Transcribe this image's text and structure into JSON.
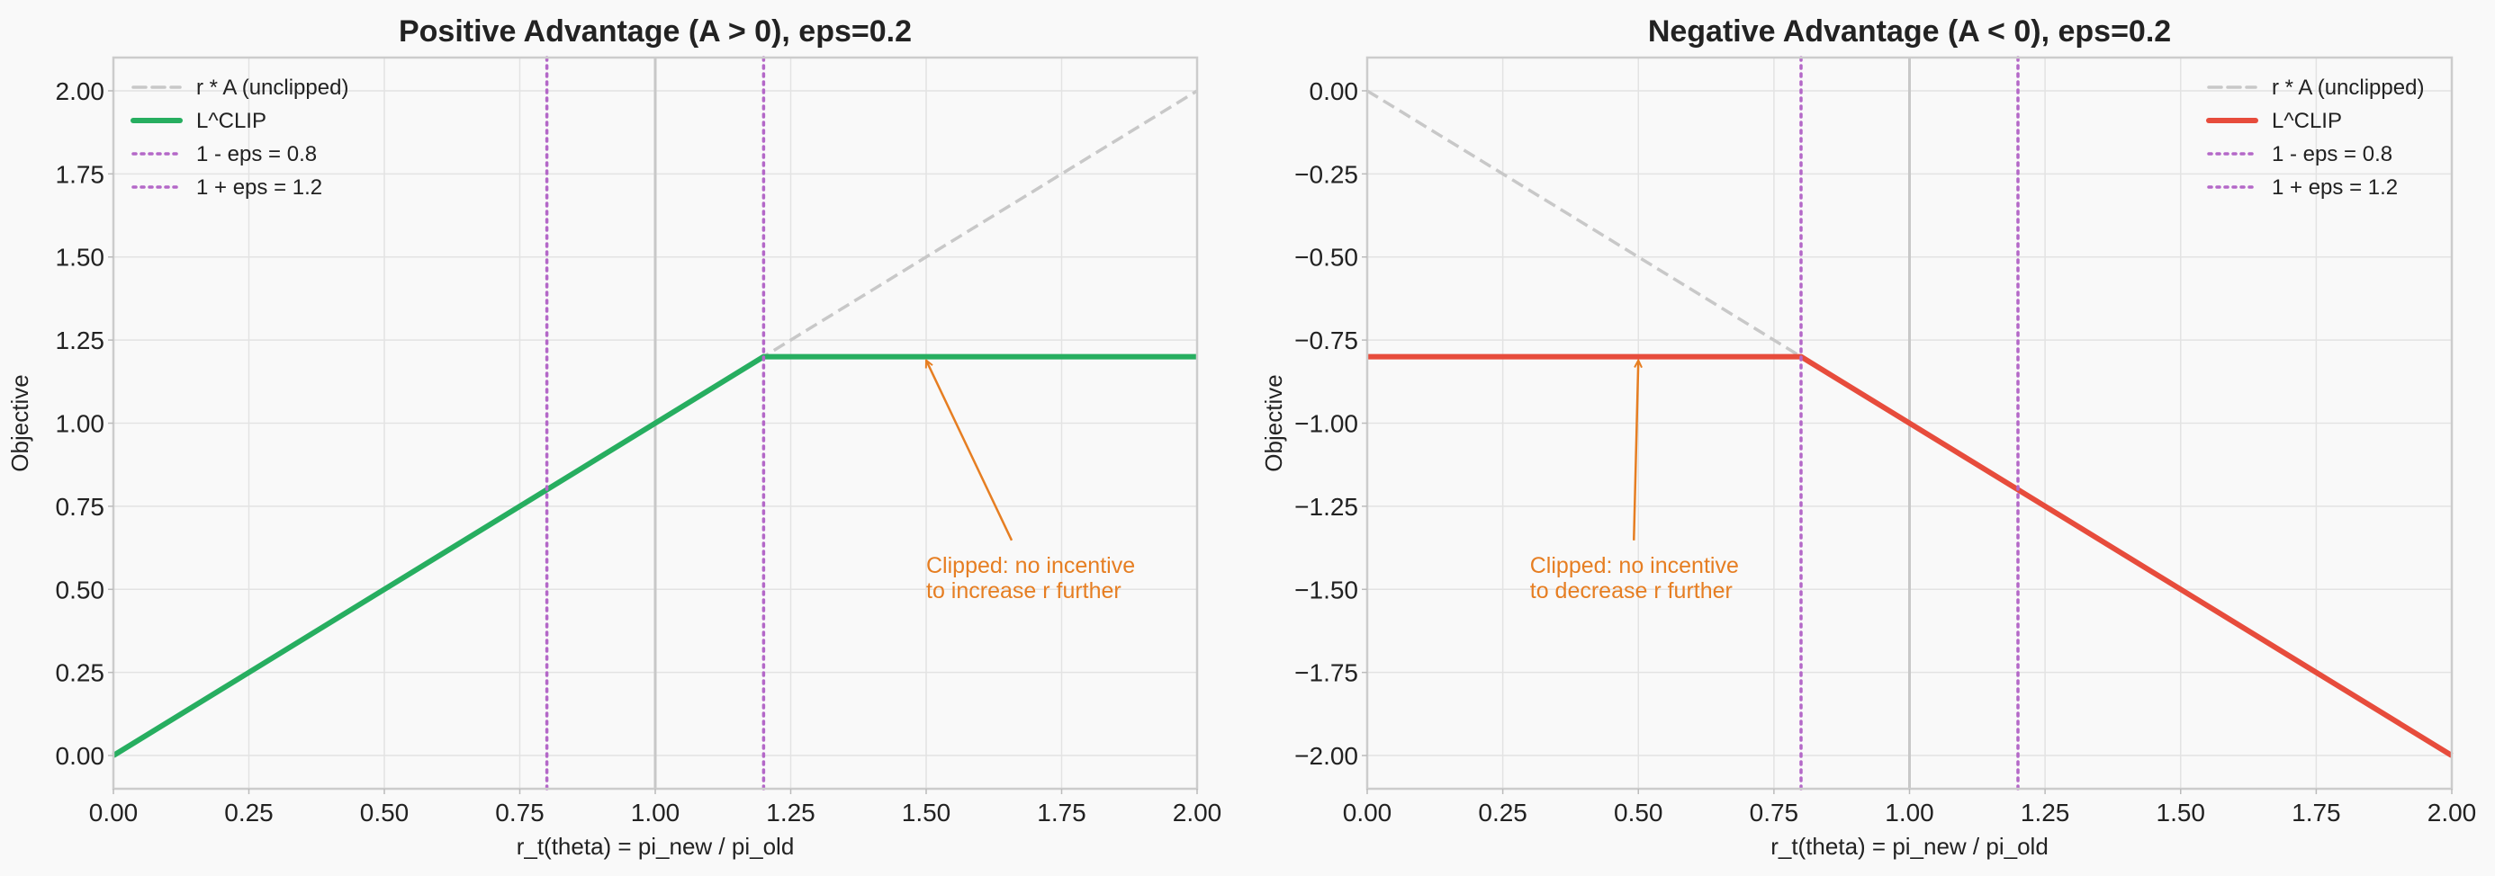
{
  "chart_data": [
    {
      "type": "line",
      "title": "Positive Advantage (A > 0), eps=0.2",
      "xlabel": "r_t(theta) = pi_new / pi_old",
      "ylabel": "Objective",
      "xlim": [
        0,
        2
      ],
      "ylim": [
        -0.1,
        2.1
      ],
      "grid": true,
      "legend_position": "top-left",
      "x_ticks": [
        0,
        0.25,
        0.5,
        0.75,
        1.0,
        1.25,
        1.5,
        1.75,
        2.0
      ],
      "x_tick_labels": [
        "0.00",
        "0.25",
        "0.50",
        "0.75",
        "1.00",
        "1.25",
        "1.50",
        "1.75",
        "2.00"
      ],
      "y_ticks": [
        0,
        0.25,
        0.5,
        0.75,
        1.0,
        1.25,
        1.5,
        1.75,
        2.0
      ],
      "y_tick_labels": [
        "0.00",
        "0.25",
        "0.50",
        "0.75",
        "1.00",
        "1.25",
        "1.50",
        "1.75",
        "2.00"
      ],
      "series": [
        {
          "name": "r * A (unclipped)",
          "style": "dashed",
          "color": "#c8c8c8",
          "x": [
            0,
            2
          ],
          "y": [
            0,
            2
          ]
        },
        {
          "name": "L^CLIP",
          "style": "solid",
          "color": "#27ae60",
          "x": [
            0,
            1.2,
            2
          ],
          "y": [
            0,
            1.2,
            1.2
          ]
        },
        {
          "name": "1 - eps = 0.8",
          "style": "dotted",
          "color": "#b468c8",
          "vline": 0.8
        },
        {
          "name": "1 + eps = 1.2",
          "style": "dotted",
          "color": "#b468c8",
          "vline": 1.2
        }
      ],
      "reference_vline": {
        "x": 1.0,
        "color": "#c8c8c8"
      },
      "annotation": {
        "lines": [
          "Clipped: no incentive",
          "to increase r further"
        ],
        "text_xy": [
          1.5,
          0.55
        ],
        "arrow_to": [
          1.5,
          1.2
        ],
        "color": "#e67e22"
      }
    },
    {
      "type": "line",
      "title": "Negative Advantage (A < 0), eps=0.2",
      "xlabel": "r_t(theta) = pi_new / pi_old",
      "ylabel": "Objective",
      "xlim": [
        0,
        2
      ],
      "ylim": [
        -2.1,
        0.1
      ],
      "grid": true,
      "legend_position": "top-right",
      "x_ticks": [
        0,
        0.25,
        0.5,
        0.75,
        1.0,
        1.25,
        1.5,
        1.75,
        2.0
      ],
      "x_tick_labels": [
        "0.00",
        "0.25",
        "0.50",
        "0.75",
        "1.00",
        "1.25",
        "1.50",
        "1.75",
        "2.00"
      ],
      "y_ticks": [
        0,
        -0.25,
        -0.5,
        -0.75,
        -1.0,
        -1.25,
        -1.5,
        -1.75,
        -2.0
      ],
      "y_tick_labels": [
        "0.00",
        "−0.25",
        "−0.50",
        "−0.75",
        "−1.00",
        "−1.25",
        "−1.50",
        "−1.75",
        "−2.00"
      ],
      "series": [
        {
          "name": "r * A (unclipped)",
          "style": "dashed",
          "color": "#c8c8c8",
          "x": [
            0,
            2
          ],
          "y": [
            0,
            -2
          ]
        },
        {
          "name": "L^CLIP",
          "style": "solid",
          "color": "#e74c3c",
          "x": [
            0,
            0.8,
            2
          ],
          "y": [
            -0.8,
            -0.8,
            -2
          ]
        },
        {
          "name": "1 - eps = 0.8",
          "style": "dotted",
          "color": "#b468c8",
          "vline": 0.8
        },
        {
          "name": "1 + eps = 1.2",
          "style": "dotted",
          "color": "#b468c8",
          "vline": 1.2
        }
      ],
      "reference_vline": {
        "x": 1.0,
        "color": "#c8c8c8"
      },
      "annotation": {
        "lines": [
          "Clipped: no incentive",
          "to decrease r further"
        ],
        "text_xy": [
          0.3,
          -1.45
        ],
        "arrow_to": [
          0.5,
          -0.8
        ],
        "color": "#e67e22"
      }
    }
  ]
}
